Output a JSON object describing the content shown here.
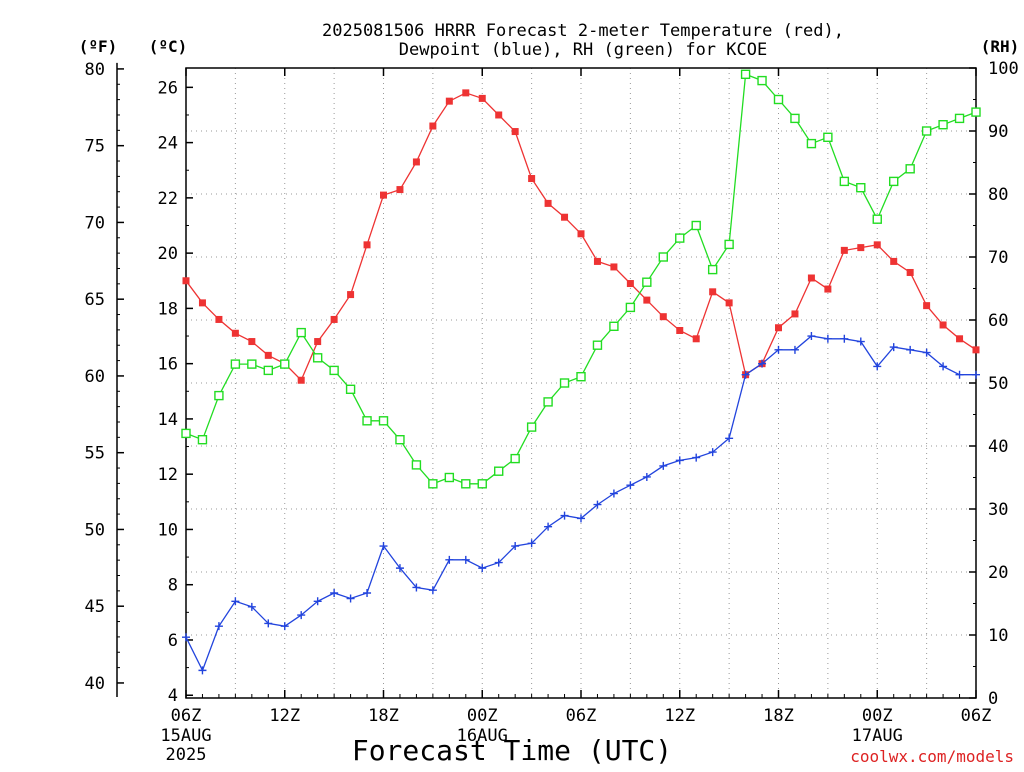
{
  "chart_data": {
    "type": "line",
    "title_line1": "2025081506 HRRR Forecast 2-meter Temperature (red),",
    "title_line2": "Dewpoint (blue), RH (green) for KCOE",
    "xlabel": "Forecast Time (UTC)",
    "credit": "coolwx.com/models",
    "y_left_f": {
      "label": "(ºF)",
      "ticks": [
        40,
        45,
        50,
        55,
        60,
        65,
        70,
        75,
        80
      ]
    },
    "y_left_c": {
      "label": "(ºC)",
      "ticks": [
        4,
        6,
        8,
        10,
        12,
        14,
        16,
        18,
        20,
        22,
        24,
        26
      ],
      "range": [
        3.9,
        26.7
      ]
    },
    "y_right": {
      "label": "(RH)",
      "ticks": [
        0,
        10,
        20,
        30,
        40,
        50,
        60,
        70,
        80,
        90,
        100
      ],
      "range": [
        0,
        100
      ]
    },
    "x_range": [
      0,
      48
    ],
    "x_ticks": [
      {
        "x": 0,
        "label": "06Z",
        "sub1": "15AUG",
        "sub2": "2025"
      },
      {
        "x": 6,
        "label": "12Z",
        "sub1": "",
        "sub2": ""
      },
      {
        "x": 12,
        "label": "18Z",
        "sub1": "",
        "sub2": ""
      },
      {
        "x": 18,
        "label": "00Z",
        "sub1": "16AUG",
        "sub2": ""
      },
      {
        "x": 24,
        "label": "06Z",
        "sub1": "",
        "sub2": ""
      },
      {
        "x": 30,
        "label": "12Z",
        "sub1": "",
        "sub2": ""
      },
      {
        "x": 36,
        "label": "18Z",
        "sub1": "",
        "sub2": ""
      },
      {
        "x": 42,
        "label": "00Z",
        "sub1": "17AUG",
        "sub2": ""
      },
      {
        "x": 48,
        "label": "06Z",
        "sub1": "",
        "sub2": ""
      }
    ],
    "grid": true,
    "series": [
      {
        "name": "Temperature",
        "color": "#ee3333",
        "marker": "filled-square",
        "axis": "celsius",
        "values": [
          19.0,
          18.2,
          17.6,
          17.1,
          16.8,
          16.3,
          16.0,
          15.4,
          16.8,
          17.6,
          18.5,
          20.3,
          22.1,
          22.3,
          23.3,
          24.6,
          25.5,
          25.8,
          25.6,
          25.0,
          24.4,
          22.7,
          21.8,
          21.3,
          20.7,
          19.7,
          19.5,
          18.9,
          18.3,
          17.7,
          17.2,
          16.9,
          18.6,
          18.2,
          15.6,
          16.0,
          17.3,
          17.8,
          19.1,
          18.7,
          20.1,
          20.2,
          20.3,
          19.7,
          19.3,
          18.1,
          17.4,
          16.9,
          16.5
        ]
      },
      {
        "name": "Dewpoint",
        "color": "#2244dd",
        "marker": "plus",
        "axis": "celsius",
        "values": [
          6.1,
          4.9,
          6.5,
          7.4,
          7.2,
          6.6,
          6.5,
          6.9,
          7.4,
          7.7,
          7.5,
          7.7,
          9.4,
          8.6,
          7.9,
          7.8,
          8.9,
          8.9,
          8.6,
          8.8,
          9.4,
          9.5,
          10.1,
          10.5,
          10.4,
          10.9,
          11.3,
          11.6,
          11.9,
          12.3,
          12.5,
          12.6,
          12.8,
          13.3,
          15.6,
          16.0,
          16.5,
          16.5,
          17.0,
          16.9,
          16.9,
          16.8,
          15.9,
          16.6,
          16.5,
          16.4,
          15.9,
          15.6,
          15.6
        ]
      },
      {
        "name": "Relative Humidity",
        "color": "#22dd22",
        "marker": "open-square",
        "axis": "rh",
        "values": [
          42,
          41,
          48,
          53,
          53,
          52,
          53,
          58,
          54,
          52,
          49,
          44,
          44,
          41,
          37,
          34,
          35,
          34,
          34,
          36,
          38,
          43,
          47,
          50,
          51,
          56,
          59,
          62,
          66,
          70,
          73,
          75,
          68,
          72,
          99,
          98,
          95,
          92,
          88,
          89,
          82,
          81,
          76,
          82,
          84,
          90,
          91,
          92,
          93
        ]
      }
    ]
  }
}
